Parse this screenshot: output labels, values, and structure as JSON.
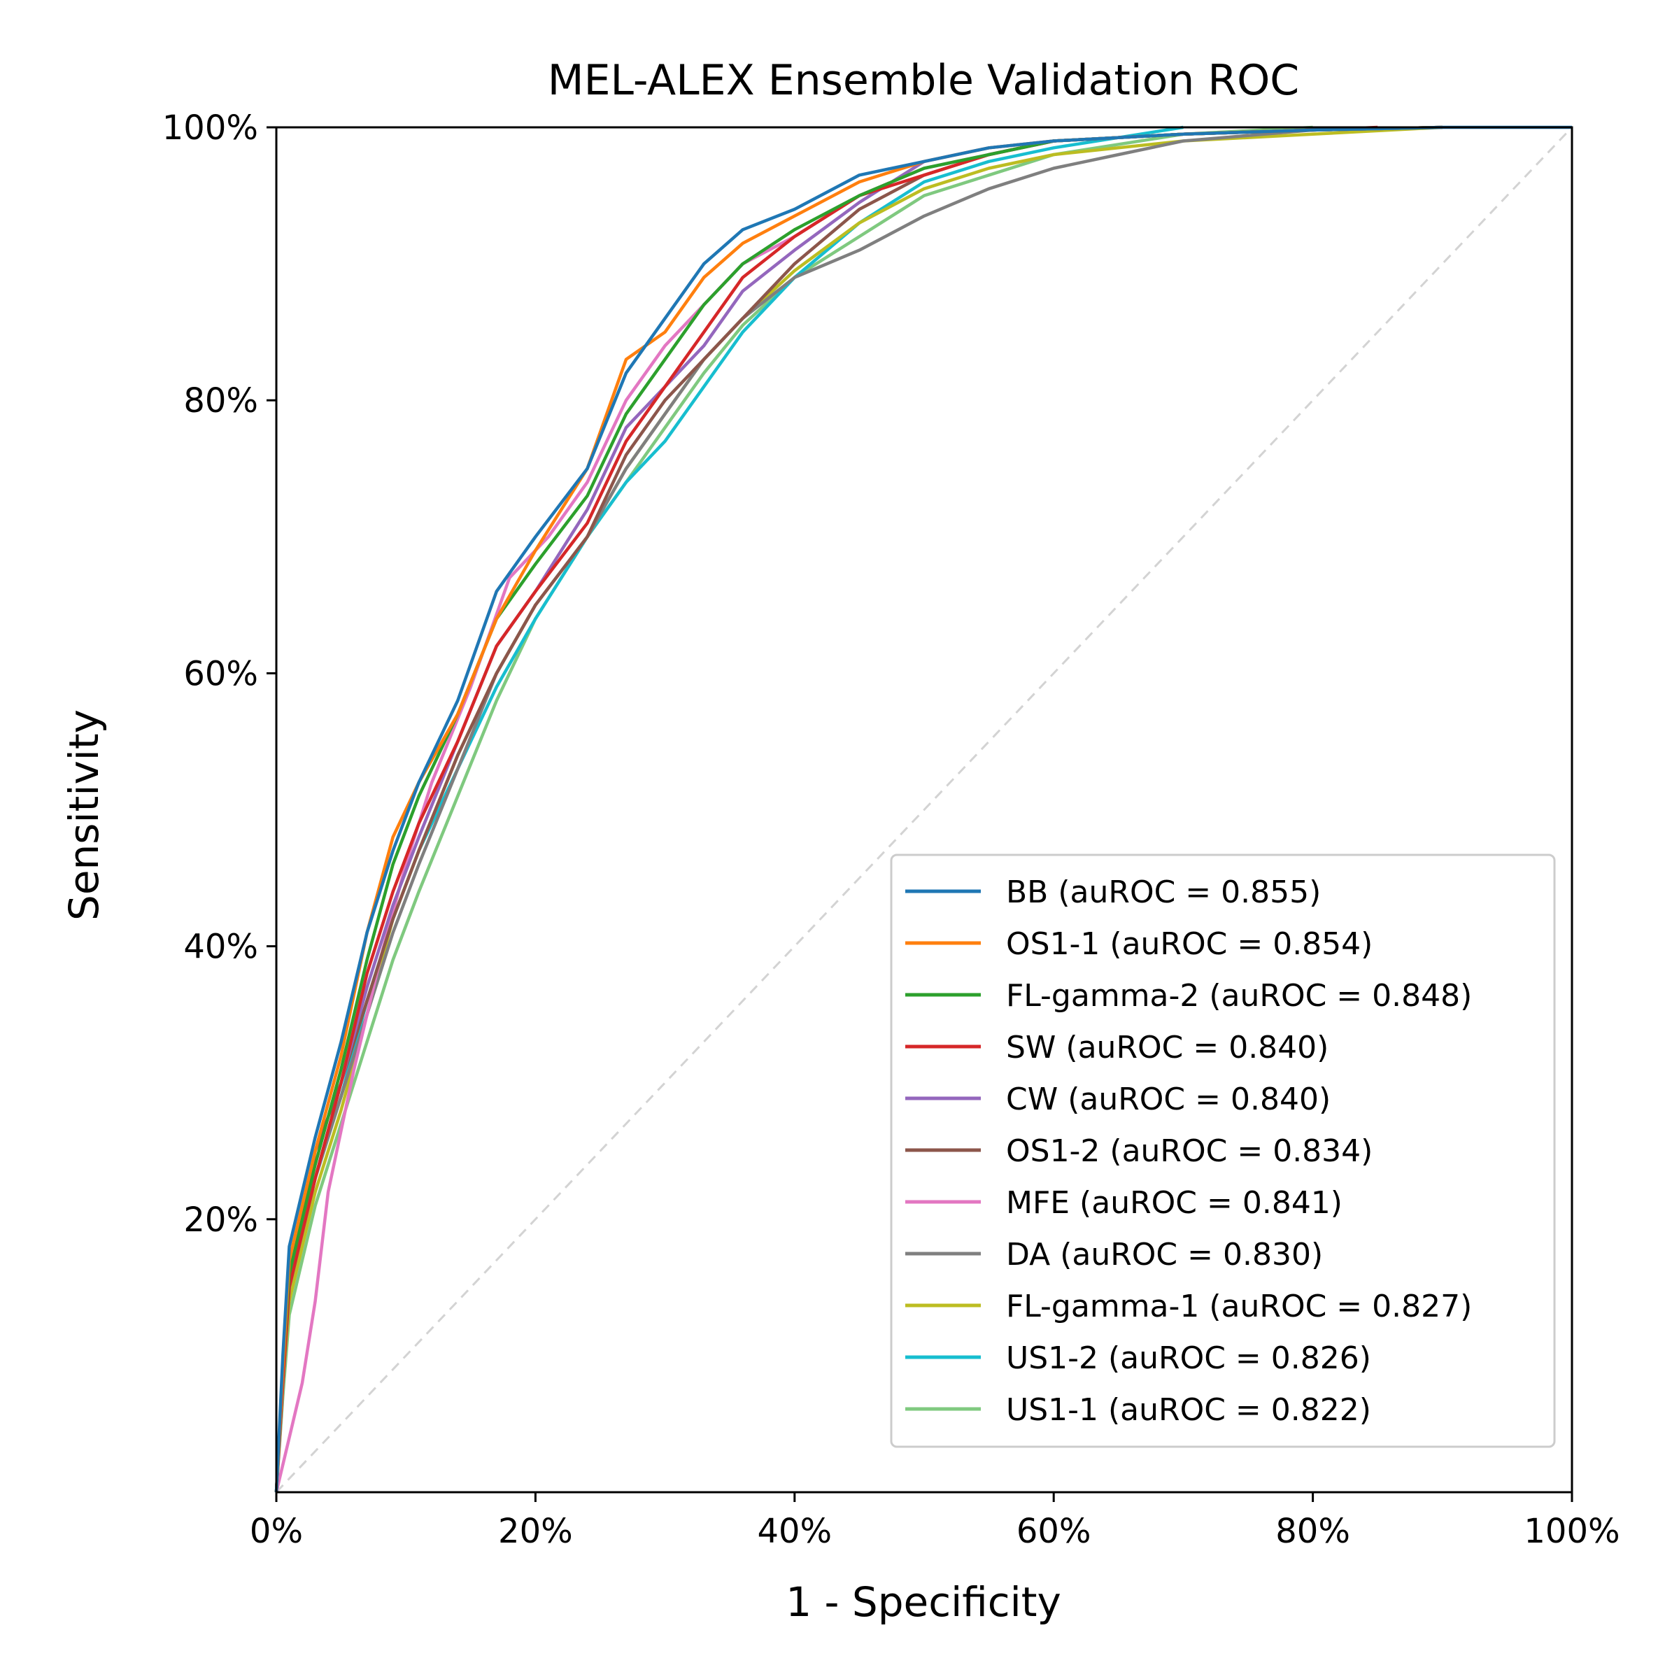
{
  "chart_data": {
    "type": "line",
    "title": "MEL-ALEX Ensemble Validation ROC",
    "xlabel": "1 - Specificity",
    "ylabel": "Sensitivity",
    "xlim": [
      0,
      1
    ],
    "ylim": [
      0,
      1
    ],
    "grid": false,
    "legend_position": "bottom-right",
    "x_ticks": [
      {
        "value": 0,
        "label": "0%"
      },
      {
        "value": 0.2,
        "label": "20%"
      },
      {
        "value": 0.4,
        "label": "40%"
      },
      {
        "value": 0.6,
        "label": "60%"
      },
      {
        "value": 0.8,
        "label": "80%"
      },
      {
        "value": 1,
        "label": "100%"
      }
    ],
    "y_ticks": [
      {
        "value": 0.2,
        "label": "20%"
      },
      {
        "value": 0.4,
        "label": "40%"
      },
      {
        "value": 0.6,
        "label": "60%"
      },
      {
        "value": 0.8,
        "label": "80%"
      },
      {
        "value": 1,
        "label": "100%"
      }
    ],
    "diagonal": {
      "x": [
        0,
        1
      ],
      "y": [
        0,
        1
      ],
      "color": "#d3d3d3",
      "style": "dashed"
    },
    "series": [
      {
        "name": "BB (auROC = 0.855)",
        "color": "#1f77b4",
        "x": [
          0,
          0.005,
          0.01,
          0.02,
          0.03,
          0.05,
          0.07,
          0.09,
          0.11,
          0.14,
          0.17,
          0.2,
          0.24,
          0.27,
          0.3,
          0.33,
          0.36,
          0.4,
          0.45,
          0.5,
          0.55,
          0.6,
          0.7,
          0.8,
          0.9,
          1.0
        ],
        "y": [
          0,
          0.1,
          0.18,
          0.22,
          0.26,
          0.33,
          0.41,
          0.47,
          0.52,
          0.58,
          0.66,
          0.7,
          0.75,
          0.82,
          0.86,
          0.9,
          0.925,
          0.94,
          0.965,
          0.975,
          0.985,
          0.99,
          0.995,
          0.998,
          1.0,
          1.0
        ]
      },
      {
        "name": "OS1-1 (auROC = 0.854)",
        "color": "#ff7f0e",
        "x": [
          0,
          0.005,
          0.01,
          0.02,
          0.03,
          0.05,
          0.07,
          0.09,
          0.11,
          0.14,
          0.17,
          0.2,
          0.24,
          0.27,
          0.3,
          0.33,
          0.36,
          0.4,
          0.45,
          0.5,
          0.55,
          0.6,
          0.7,
          0.8,
          0.9
        ],
        "y": [
          0,
          0.09,
          0.17,
          0.21,
          0.25,
          0.32,
          0.41,
          0.48,
          0.52,
          0.57,
          0.64,
          0.69,
          0.75,
          0.83,
          0.85,
          0.89,
          0.915,
          0.935,
          0.96,
          0.975,
          0.985,
          0.99,
          0.995,
          0.998,
          1.0
        ]
      },
      {
        "name": "FL-gamma-2 (auROC = 0.848)",
        "color": "#2ca02c",
        "x": [
          0,
          0.005,
          0.01,
          0.02,
          0.03,
          0.05,
          0.07,
          0.09,
          0.11,
          0.14,
          0.17,
          0.2,
          0.24,
          0.27,
          0.3,
          0.33,
          0.36,
          0.4,
          0.45,
          0.5,
          0.55,
          0.6,
          0.7,
          0.8,
          0.9
        ],
        "y": [
          0,
          0.09,
          0.16,
          0.2,
          0.24,
          0.31,
          0.39,
          0.46,
          0.51,
          0.57,
          0.64,
          0.68,
          0.73,
          0.79,
          0.83,
          0.87,
          0.9,
          0.925,
          0.95,
          0.97,
          0.98,
          0.99,
          0.995,
          0.998,
          1.0
        ]
      },
      {
        "name": "SW (auROC = 0.840)",
        "color": "#d62728",
        "x": [
          0,
          0.005,
          0.01,
          0.02,
          0.03,
          0.05,
          0.07,
          0.09,
          0.11,
          0.14,
          0.17,
          0.2,
          0.24,
          0.27,
          0.3,
          0.33,
          0.36,
          0.4,
          0.45,
          0.5,
          0.55,
          0.6,
          0.7,
          0.8,
          0.85
        ],
        "y": [
          0,
          0.08,
          0.15,
          0.19,
          0.23,
          0.3,
          0.38,
          0.44,
          0.49,
          0.55,
          0.62,
          0.66,
          0.71,
          0.77,
          0.81,
          0.85,
          0.89,
          0.92,
          0.95,
          0.965,
          0.98,
          0.99,
          0.995,
          0.998,
          1.0
        ]
      },
      {
        "name": "CW (auROC = 0.840)",
        "color": "#9467bd",
        "x": [
          0,
          0.005,
          0.01,
          0.02,
          0.03,
          0.05,
          0.07,
          0.09,
          0.11,
          0.14,
          0.17,
          0.2,
          0.24,
          0.27,
          0.3,
          0.33,
          0.36,
          0.4,
          0.45,
          0.5,
          0.55,
          0.6,
          0.7,
          0.8,
          0.9
        ],
        "y": [
          0,
          0.08,
          0.15,
          0.19,
          0.23,
          0.3,
          0.37,
          0.43,
          0.48,
          0.55,
          0.62,
          0.66,
          0.72,
          0.78,
          0.81,
          0.84,
          0.88,
          0.91,
          0.945,
          0.975,
          0.985,
          0.99,
          0.995,
          0.998,
          1.0
        ]
      },
      {
        "name": "OS1-2 (auROC = 0.834)",
        "color": "#8c564b",
        "x": [
          0,
          0.005,
          0.01,
          0.02,
          0.03,
          0.05,
          0.07,
          0.09,
          0.11,
          0.14,
          0.17,
          0.2,
          0.24,
          0.27,
          0.3,
          0.33,
          0.36,
          0.4,
          0.45,
          0.5,
          0.55,
          0.6,
          0.7,
          0.8,
          0.9
        ],
        "y": [
          0,
          0.09,
          0.16,
          0.2,
          0.25,
          0.3,
          0.36,
          0.42,
          0.47,
          0.54,
          0.6,
          0.65,
          0.7,
          0.76,
          0.8,
          0.83,
          0.86,
          0.9,
          0.94,
          0.965,
          0.98,
          0.99,
          0.995,
          0.998,
          1.0
        ]
      },
      {
        "name": "MFE (auROC = 0.841)",
        "color": "#e377c2",
        "x": [
          0,
          0.01,
          0.02,
          0.03,
          0.04,
          0.06,
          0.08,
          0.1,
          0.12,
          0.15,
          0.18,
          0.21,
          0.24,
          0.27,
          0.3,
          0.33,
          0.36,
          0.4,
          0.45,
          0.5,
          0.55,
          0.6,
          0.7,
          0.8,
          0.9
        ],
        "y": [
          0,
          0.04,
          0.08,
          0.14,
          0.22,
          0.31,
          0.39,
          0.46,
          0.52,
          0.59,
          0.67,
          0.7,
          0.74,
          0.8,
          0.84,
          0.87,
          0.9,
          0.92,
          0.95,
          0.97,
          0.98,
          0.99,
          0.995,
          0.998,
          1.0
        ]
      },
      {
        "name": "DA (auROC = 0.830)",
        "color": "#7f7f7f",
        "x": [
          0,
          0.005,
          0.01,
          0.02,
          0.03,
          0.05,
          0.07,
          0.09,
          0.11,
          0.14,
          0.17,
          0.2,
          0.24,
          0.27,
          0.3,
          0.33,
          0.36,
          0.4,
          0.45,
          0.5,
          0.55,
          0.6,
          0.65,
          0.7,
          0.8,
          0.9
        ],
        "y": [
          0,
          0.08,
          0.15,
          0.19,
          0.23,
          0.29,
          0.35,
          0.41,
          0.46,
          0.53,
          0.6,
          0.65,
          0.7,
          0.75,
          0.79,
          0.83,
          0.86,
          0.89,
          0.91,
          0.935,
          0.955,
          0.97,
          0.98,
          0.99,
          0.998,
          1.0
        ]
      },
      {
        "name": "FL-gamma-1 (auROC = 0.827)",
        "color": "#bcbd22",
        "x": [
          0,
          0.005,
          0.01,
          0.02,
          0.03,
          0.05,
          0.07,
          0.09,
          0.11,
          0.14,
          0.17,
          0.2,
          0.24,
          0.27,
          0.3,
          0.33,
          0.36,
          0.4,
          0.45,
          0.5,
          0.55,
          0.6,
          0.7,
          0.8,
          0.9
        ],
        "y": [
          0,
          0.08,
          0.14,
          0.18,
          0.22,
          0.28,
          0.35,
          0.42,
          0.47,
          0.54,
          0.6,
          0.65,
          0.7,
          0.75,
          0.79,
          0.83,
          0.86,
          0.895,
          0.93,
          0.955,
          0.97,
          0.98,
          0.99,
          0.995,
          1.0
        ]
      },
      {
        "name": "US1-2 (auROC = 0.826)",
        "color": "#17becf",
        "x": [
          0,
          0.005,
          0.01,
          0.02,
          0.03,
          0.05,
          0.07,
          0.09,
          0.11,
          0.14,
          0.17,
          0.2,
          0.24,
          0.27,
          0.3,
          0.33,
          0.36,
          0.4,
          0.45,
          0.5,
          0.55,
          0.6,
          0.7
        ],
        "y": [
          0,
          0.08,
          0.15,
          0.19,
          0.23,
          0.29,
          0.36,
          0.42,
          0.47,
          0.53,
          0.59,
          0.64,
          0.7,
          0.74,
          0.77,
          0.81,
          0.85,
          0.89,
          0.93,
          0.96,
          0.975,
          0.985,
          1.0
        ]
      },
      {
        "name": "US1-1 (auROC = 0.822)",
        "color": "#7fc97f",
        "x": [
          0,
          0.005,
          0.01,
          0.02,
          0.03,
          0.05,
          0.07,
          0.09,
          0.11,
          0.14,
          0.17,
          0.2,
          0.24,
          0.27,
          0.3,
          0.33,
          0.36,
          0.4,
          0.45,
          0.5,
          0.55,
          0.6,
          0.7,
          0.8
        ],
        "y": [
          0,
          0.07,
          0.13,
          0.17,
          0.21,
          0.27,
          0.33,
          0.39,
          0.44,
          0.51,
          0.58,
          0.64,
          0.7,
          0.74,
          0.78,
          0.82,
          0.855,
          0.89,
          0.92,
          0.95,
          0.965,
          0.98,
          0.995,
          1.0
        ]
      }
    ]
  }
}
